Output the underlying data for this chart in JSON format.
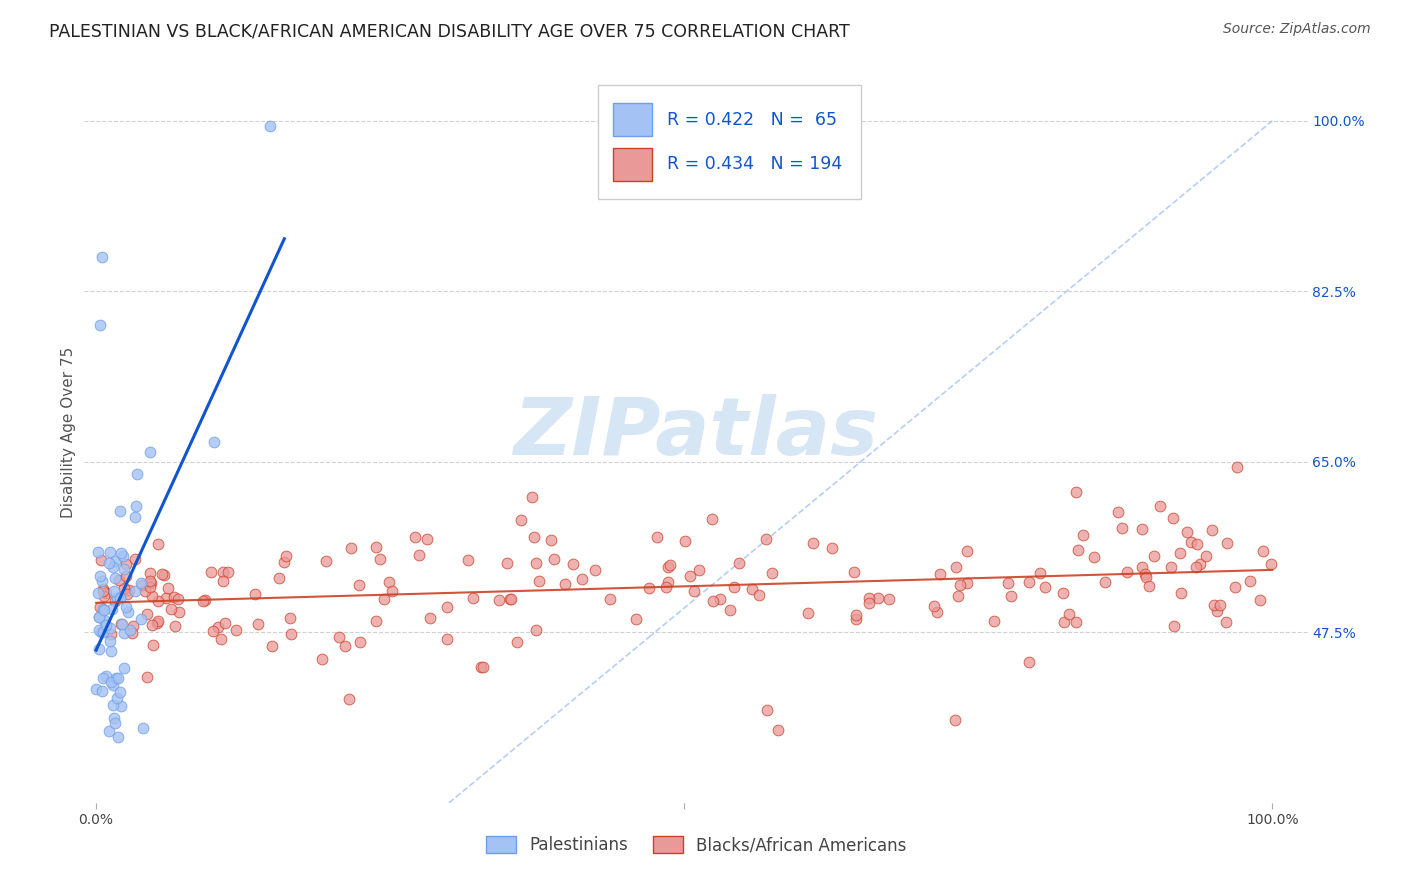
{
  "title": "PALESTINIAN VS BLACK/AFRICAN AMERICAN DISABILITY AGE OVER 75 CORRELATION CHART",
  "source": "Source: ZipAtlas.com",
  "ylabel": "Disability Age Over 75",
  "legend_palestinians": "Palestinians",
  "legend_blacks": "Blacks/African Americans",
  "r_palestinian": 0.422,
  "n_palestinian": 65,
  "r_black": 0.434,
  "n_black": 194,
  "blue_scatter_color": "#a4c2f4",
  "blue_scatter_edge": "#6d9eeb",
  "blue_line_color": "#1155cc",
  "pink_scatter_color": "#ea9999",
  "pink_scatter_edge": "#cc4125",
  "pink_line_color": "#cc4125",
  "text_blue": "#1155cc",
  "background_color": "#ffffff",
  "grid_color": "#cccccc",
  "diag_color": "#a4c2f4",
  "watermark_color": "#cfe2f3",
  "title_fontsize": 12.5,
  "source_fontsize": 10,
  "ylabel_fontsize": 11,
  "tick_fontsize": 10,
  "legend_fontsize": 12
}
